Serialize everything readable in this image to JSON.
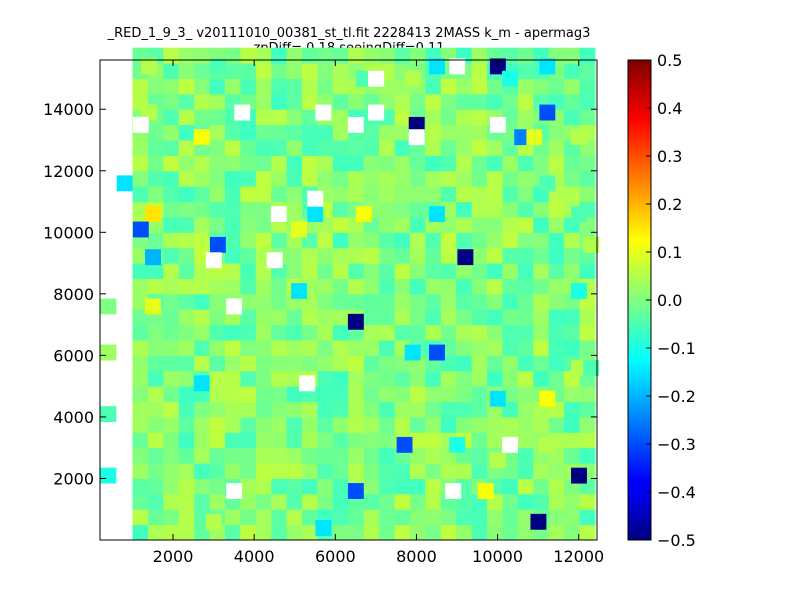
{
  "chart_data": {
    "type": "heatmap",
    "title": "_RED_1_9_3_ v20111010_00381_st_tl.fit 2228413 2MASS k_m - apermag3",
    "subtitle": "zpDiff= 0.18 seeingDiff=0.11",
    "xlabel": "",
    "ylabel": "",
    "xlim": [
      200,
      12450
    ],
    "ylim": [
      0,
      15600
    ],
    "xticks": [
      "2000",
      "4000",
      "6000",
      "8000",
      "10000",
      "12000"
    ],
    "xtick_values": [
      2000,
      4000,
      6000,
      8000,
      10000,
      12000
    ],
    "yticks": [
      "2000",
      "4000",
      "6000",
      "8000",
      "10000",
      "12000",
      "14000"
    ],
    "ytick_values": [
      2000,
      4000,
      6000,
      8000,
      10000,
      12000,
      14000
    ],
    "colorbar": {
      "colormap": "jet",
      "vmin": -0.5,
      "vmax": 0.5,
      "ticks": [
        "−0.5",
        "−0.4",
        "−0.3",
        "−0.2",
        "−0.1",
        "0.0",
        "0.1",
        "0.2",
        "0.3",
        "0.4",
        "0.5"
      ],
      "tick_values": [
        -0.5,
        -0.4,
        -0.3,
        -0.2,
        -0.1,
        0.0,
        0.1,
        0.2,
        0.3,
        0.4,
        0.5
      ]
    },
    "grid": false,
    "cells": [
      {
        "x": 11220,
        "y": 15400,
        "value": -0.15
      },
      {
        "x": 10000,
        "y": 15400,
        "value": -0.5
      },
      {
        "x": 1400,
        "y": 15400,
        "value": 0.05
      },
      {
        "x": 3100,
        "y": 15400,
        "value": -0.05
      },
      {
        "x": 8500,
        "y": 15400,
        "value": -0.15
      },
      {
        "x": 6700,
        "y": 15000,
        "value": -0.05
      },
      {
        "x": 7900,
        "y": 15000,
        "value": 0.05
      },
      {
        "x": 10300,
        "y": 15000,
        "value": -0.1
      },
      {
        "x": 11220,
        "y": 13900,
        "value": -0.3
      },
      {
        "x": 1400,
        "y": 13900,
        "value": 0.05
      },
      {
        "x": 8000,
        "y": 13500,
        "value": -0.5
      },
      {
        "x": 10600,
        "y": 13100,
        "value": -0.25
      },
      {
        "x": 10900,
        "y": 13100,
        "value": 0.1
      },
      {
        "x": 2700,
        "y": 13100,
        "value": 0.12
      },
      {
        "x": 12000,
        "y": 13100,
        "value": 0.05
      },
      {
        "x": 800,
        "y": 11600,
        "value": -0.15
      },
      {
        "x": 11220,
        "y": 11600,
        "value": -0.05
      },
      {
        "x": 1500,
        "y": 10600,
        "value": 0.15
      },
      {
        "x": 5500,
        "y": 10600,
        "value": -0.15
      },
      {
        "x": 6700,
        "y": 10600,
        "value": 0.12
      },
      {
        "x": 8500,
        "y": 10600,
        "value": -0.15
      },
      {
        "x": 12000,
        "y": 10600,
        "value": -0.05
      },
      {
        "x": 1200,
        "y": 10100,
        "value": -0.3
      },
      {
        "x": 5100,
        "y": 10100,
        "value": 0.1
      },
      {
        "x": 3100,
        "y": 9600,
        "value": -0.3
      },
      {
        "x": 12300,
        "y": 9600,
        "value": 0.05
      },
      {
        "x": 9200,
        "y": 9200,
        "value": -0.5
      },
      {
        "x": 1500,
        "y": 9200,
        "value": -0.2
      },
      {
        "x": 5100,
        "y": 8100,
        "value": -0.15
      },
      {
        "x": 12000,
        "y": 8100,
        "value": -0.1
      },
      {
        "x": 1500,
        "y": 7600,
        "value": 0.1
      },
      {
        "x": 6500,
        "y": 7100,
        "value": -0.5
      },
      {
        "x": 400,
        "y": 7600,
        "value": 0.0
      },
      {
        "x": 8500,
        "y": 6100,
        "value": -0.3
      },
      {
        "x": 7900,
        "y": 6100,
        "value": -0.15
      },
      {
        "x": 400,
        "y": 6100,
        "value": 0.03
      },
      {
        "x": 12000,
        "y": 5600,
        "value": 0.05
      },
      {
        "x": 12300,
        "y": 5600,
        "value": -0.05
      },
      {
        "x": 11220,
        "y": 4600,
        "value": 0.12
      },
      {
        "x": 10000,
        "y": 4600,
        "value": -0.15
      },
      {
        "x": 2700,
        "y": 5100,
        "value": -0.15
      },
      {
        "x": 400,
        "y": 4100,
        "value": -0.05
      },
      {
        "x": 7700,
        "y": 3100,
        "value": -0.3
      },
      {
        "x": 9000,
        "y": 3100,
        "value": -0.1
      },
      {
        "x": 10000,
        "y": 2600,
        "value": 0.05
      },
      {
        "x": 11200,
        "y": 3100,
        "value": 0.05
      },
      {
        "x": 400,
        "y": 2100,
        "value": -0.1
      },
      {
        "x": 12000,
        "y": 2100,
        "value": -0.5
      },
      {
        "x": 6500,
        "y": 1600,
        "value": -0.3
      },
      {
        "x": 9700,
        "y": 1600,
        "value": 0.12
      },
      {
        "x": 11000,
        "y": 600,
        "value": -0.5
      },
      {
        "x": 5700,
        "y": 400,
        "value": -0.15
      },
      {
        "x": 3000,
        "y": 600,
        "value": 0.05
      }
    ],
    "missing_cells": [
      {
        "x": 7000,
        "y": 15000
      },
      {
        "x": 9000,
        "y": 15400
      },
      {
        "x": 3700,
        "y": 13900
      },
      {
        "x": 5700,
        "y": 13900
      },
      {
        "x": 6500,
        "y": 13500
      },
      {
        "x": 7000,
        "y": 13900
      },
      {
        "x": 8000,
        "y": 13100
      },
      {
        "x": 10000,
        "y": 13500
      },
      {
        "x": 1200,
        "y": 13500
      },
      {
        "x": 4600,
        "y": 10600
      },
      {
        "x": 5500,
        "y": 11100
      },
      {
        "x": 3000,
        "y": 9100
      },
      {
        "x": 4500,
        "y": 9100
      },
      {
        "x": 3500,
        "y": 7600
      },
      {
        "x": 5300,
        "y": 5100
      },
      {
        "x": 3500,
        "y": 1600
      },
      {
        "x": 8900,
        "y": 1600
      },
      {
        "x": 10300,
        "y": 3100
      }
    ],
    "x_bin_width": 380,
    "y_bin_width": 500
  }
}
